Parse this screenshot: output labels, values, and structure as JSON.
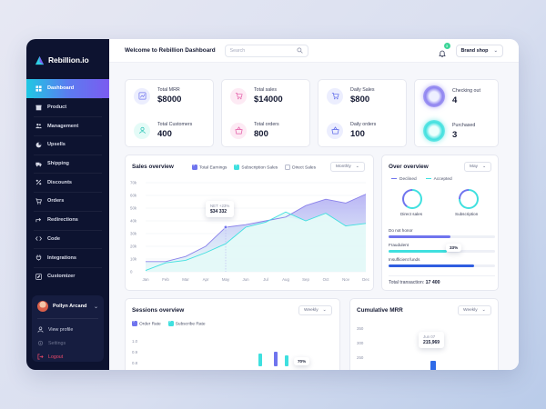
{
  "app": {
    "name": "Rebillion.io"
  },
  "sidebar": {
    "items": [
      {
        "label": "Dashboard",
        "icon": "grid-icon",
        "active": true
      },
      {
        "label": "Product",
        "icon": "box-icon"
      },
      {
        "label": "Management",
        "icon": "users-icon"
      },
      {
        "label": "Upsells",
        "icon": "pie-icon"
      },
      {
        "label": "Shipping",
        "icon": "truck-icon"
      },
      {
        "label": "Discounts",
        "icon": "percent-icon"
      },
      {
        "label": "Orders",
        "icon": "cart-icon"
      },
      {
        "label": "Redirections",
        "icon": "redirect-icon"
      },
      {
        "label": "Code",
        "icon": "code-icon"
      },
      {
        "label": "Integrations",
        "icon": "plug-icon"
      },
      {
        "label": "Customizer",
        "icon": "edit-icon"
      }
    ],
    "user": {
      "name": "Pollyn Arcand",
      "menu": [
        "View profile",
        "Settings",
        "Logout"
      ]
    }
  },
  "header": {
    "title": "Welcome to Rebillion Dashboard",
    "search_placeholder": "Search",
    "notifications": "3",
    "shop_select": "Brand shop"
  },
  "stats": {
    "card1": [
      {
        "label": "Total MRR",
        "value": "$8000"
      },
      {
        "label": "Total Customers",
        "value": "400"
      }
    ],
    "card2": [
      {
        "label": "Total sales",
        "value": "$14000"
      },
      {
        "label": "Total orders",
        "value": "800"
      }
    ],
    "card3": [
      {
        "label": "Daily Sales",
        "value": "$800"
      },
      {
        "label": "Daily orders",
        "value": "100"
      }
    ],
    "card4": [
      {
        "label": "Checking out",
        "value": "4"
      },
      {
        "label": "Purchased",
        "value": "3"
      }
    ]
  },
  "sales_overview": {
    "title": "Sales overview",
    "legend": [
      "Total Earnings",
      "Subscription Sales",
      "Direct Sales"
    ],
    "select": "Monthly",
    "tooltip": {
      "line1": "NET +23%",
      "line2": "$34 332"
    }
  },
  "chart_data": {
    "type": "area",
    "categories": [
      "Jan",
      "Feb",
      "Mar",
      "Apr",
      "May",
      "Jun",
      "Jul",
      "Aug",
      "Sep",
      "Oct",
      "Nov",
      "Dec"
    ],
    "yticks": [
      "0",
      "10k",
      "20k",
      "30k",
      "40k",
      "50k",
      "60k",
      "70k"
    ],
    "ylim": [
      0,
      70000
    ],
    "series": [
      {
        "name": "Total Earnings",
        "color": "#9f98ee",
        "values": [
          8000,
          8000,
          12000,
          20000,
          35000,
          37000,
          40000,
          43000,
          52000,
          57000,
          54000,
          61000
        ]
      },
      {
        "name": "Subscription Sales",
        "color": "#3fe0df",
        "values": [
          1000,
          7000,
          9000,
          15000,
          22000,
          35000,
          39000,
          47000,
          40000,
          46000,
          36000,
          38000
        ]
      }
    ]
  },
  "over_overview": {
    "title": "Over overview",
    "select": "May",
    "legend": [
      "Declined",
      "Accepted"
    ],
    "rings": [
      "Direct sales",
      "Subscription"
    ],
    "bars": [
      {
        "label": "Do not honor",
        "value": 0.58,
        "color": "#6f74ee"
      },
      {
        "label": "Fraudulent",
        "value": 0.55,
        "color": "#3fe0df",
        "tag": "33%"
      },
      {
        "label": "Insufficient funds",
        "value": 0.8,
        "color": "#2f5de0"
      }
    ],
    "total_label": "Total transaction:",
    "total_value": "17 400"
  },
  "sessions": {
    "title": "Sessions overview",
    "select": "Weekly",
    "legend": [
      "Order Rate",
      "Subscribe Rate"
    ],
    "yticks": [
      "1.0",
      "0.9",
      "0.8"
    ],
    "tag": "70%"
  },
  "cumulative": {
    "title": "Cumulative MRR",
    "select": "Weekly",
    "yticks": [
      "350",
      "300",
      "250"
    ],
    "tooltip": {
      "line1": "Jun 07",
      "line2": "215,969"
    }
  }
}
